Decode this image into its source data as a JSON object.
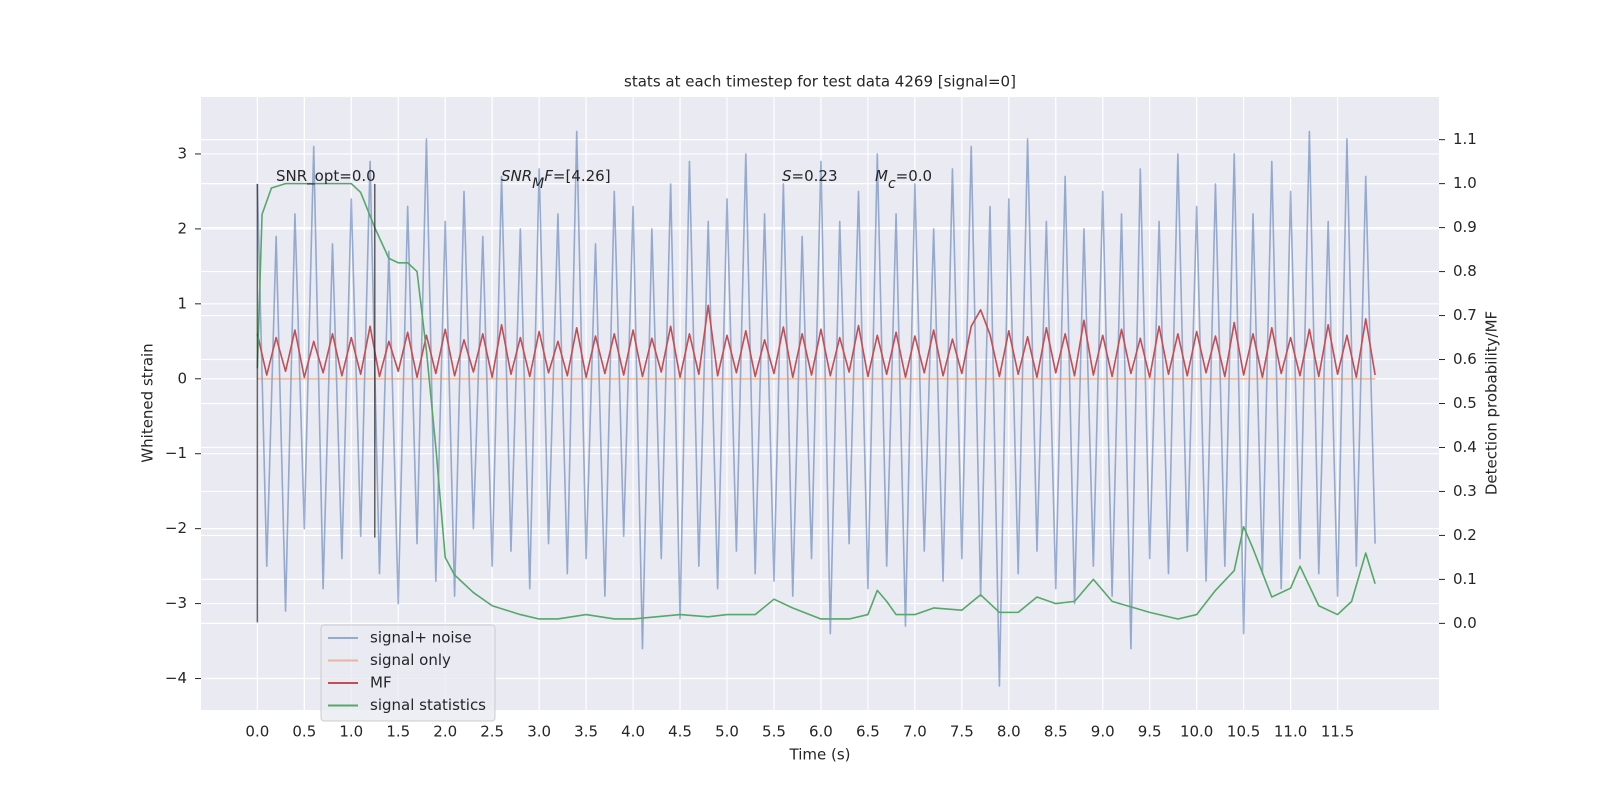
{
  "chart_data": {
    "type": "line",
    "title": "stats at each timestep for test data 4269 [signal=0]",
    "xlabel": "Time (s)",
    "ylabel": "Whitened strain",
    "y2label": "Detection probability/MF",
    "xlim": [
      -0.6,
      12.58
    ],
    "ylim": [
      -4.42,
      3.76
    ],
    "y2lim": [
      -0.197,
      1.197
    ],
    "grid": true,
    "legend": "lower left",
    "xticks": [
      {
        "value": 0,
        "label": "0.0"
      },
      0.5,
      {
        "value": 1,
        "label": "1.0"
      },
      1.5,
      {
        "value": 2,
        "label": "2.0"
      },
      2.5,
      {
        "value": 3,
        "label": "3.0"
      },
      3.5,
      {
        "value": 4,
        "label": "4.0"
      },
      4.5,
      {
        "value": 5,
        "label": "5.0"
      },
      5.5,
      {
        "value": 6,
        "label": "6.0"
      },
      6.5,
      {
        "value": 7,
        "label": "7.0"
      },
      7.5,
      {
        "value": 8,
        "label": "8.0"
      },
      8.5,
      {
        "value": 9,
        "label": "9.0"
      },
      9.5,
      {
        "value": 10,
        "label": "10.0"
      },
      10.5,
      {
        "value": 11,
        "label": "11.0"
      },
      11.5
    ],
    "yticks": [
      {
        "value": -4,
        "label": "−4"
      },
      {
        "value": -3,
        "label": "−3"
      },
      {
        "value": -2,
        "label": "−2"
      },
      {
        "value": -1,
        "label": "−1"
      },
      0,
      1,
      2,
      3
    ],
    "y2ticks": [
      {
        "value": 0,
        "label": "0.0"
      },
      0.1,
      0.2,
      0.3,
      0.4,
      0.5,
      0.6,
      0.7,
      0.8,
      0.9,
      {
        "value": 1,
        "label": "1.0"
      },
      1.1
    ],
    "x": [
      0,
      0.1,
      0.2,
      0.3,
      0.4,
      0.5,
      0.6,
      0.7,
      0.8,
      0.9,
      1,
      1.1,
      1.2,
      1.3,
      1.4,
      1.5,
      1.6,
      1.7,
      1.8,
      1.9,
      2,
      2.1,
      2.2,
      2.3,
      2.4,
      2.5,
      2.6,
      2.7,
      2.8,
      2.9,
      3,
      3.1,
      3.2,
      3.3,
      3.4,
      3.5,
      3.6,
      3.7,
      3.8,
      3.9,
      4,
      4.1,
      4.2,
      4.3,
      4.4,
      4.5,
      4.6,
      4.7,
      4.8,
      4.9,
      5,
      5.1,
      5.2,
      5.3,
      5.4,
      5.5,
      5.6,
      5.7,
      5.8,
      5.9,
      6,
      6.1,
      6.2,
      6.3,
      6.4,
      6.5,
      6.6,
      6.7,
      6.8,
      6.9,
      7,
      7.1,
      7.2,
      7.3,
      7.4,
      7.5,
      7.6,
      7.7,
      7.8,
      7.9,
      8,
      8.1,
      8.2,
      8.3,
      8.4,
      8.5,
      8.6,
      8.7,
      8.8,
      8.9,
      9,
      9.1,
      9.2,
      9.3,
      9.4,
      9.5,
      9.6,
      9.7,
      9.8,
      9.9,
      10,
      10.1,
      10.2,
      10.3,
      10.4,
      10.5,
      10.6,
      10.7,
      10.8,
      10.9,
      11,
      11.1,
      11.2,
      11.3,
      11.4,
      11.5,
      11.6,
      11.7,
      11.8,
      11.9
    ],
    "series": [
      {
        "name": "signal+ noise",
        "color": "#4c72b0",
        "opacity": 0.55,
        "values": [
          2.6,
          -2.5,
          1.9,
          -3.1,
          2.2,
          -2.0,
          3.1,
          -2.8,
          1.8,
          -2.4,
          2.4,
          -2.1,
          2.9,
          -2.6,
          1.7,
          -3.0,
          2.3,
          -2.2,
          3.2,
          -2.7,
          2.1,
          -2.9,
          2.5,
          -2.0,
          1.9,
          -2.5,
          2.7,
          -2.3,
          2.0,
          -2.8,
          2.8,
          -2.2,
          2.2,
          -2.6,
          3.3,
          -2.4,
          1.8,
          -2.9,
          2.5,
          -2.1,
          2.3,
          -3.6,
          2.0,
          -2.4,
          2.6,
          -3.2,
          2.9,
          -2.5,
          2.1,
          -2.8,
          2.4,
          -2.3,
          3.0,
          -2.6,
          2.2,
          -2.7,
          2.6,
          -2.9,
          1.9,
          -2.4,
          2.9,
          -3.4,
          2.1,
          -2.2,
          2.5,
          -2.8,
          3.0,
          -2.5,
          2.2,
          -3.3,
          2.6,
          -2.3,
          2.0,
          -2.7,
          2.8,
          -2.4,
          3.1,
          -2.9,
          2.3,
          -4.1,
          2.4,
          -2.6,
          3.2,
          -2.3,
          2.1,
          -2.8,
          2.7,
          -3.0,
          2.0,
          -2.5,
          2.5,
          -2.9,
          2.2,
          -3.6,
          2.8,
          -2.4,
          2.1,
          -2.6,
          3.0,
          -2.3,
          2.3,
          -2.7,
          2.6,
          -2.5,
          3.0,
          -3.4,
          2.2,
          -2.6,
          2.9,
          -2.8,
          2.5,
          -2.4,
          3.3,
          -2.6,
          2.1,
          -2.9,
          3.2,
          -2.5,
          2.7,
          -2.2
        ]
      },
      {
        "name": "signal only",
        "color": "#dd8452",
        "opacity": 0.5,
        "values": [
          0,
          0,
          0,
          0,
          0,
          0,
          0,
          0,
          0,
          0,
          0,
          0,
          0,
          0,
          0,
          0,
          0,
          0,
          0,
          0,
          0,
          0,
          0,
          0,
          0,
          0,
          0,
          0,
          0,
          0,
          0,
          0,
          0,
          0,
          0,
          0,
          0,
          0,
          0,
          0,
          0,
          0,
          0,
          0,
          0,
          0,
          0,
          0,
          0,
          0,
          0,
          0,
          0,
          0,
          0,
          0,
          0,
          0,
          0,
          0,
          0,
          0,
          0,
          0,
          0,
          0,
          0,
          0,
          0,
          0,
          0,
          0,
          0,
          0,
          0,
          0,
          0,
          0,
          0,
          0,
          0,
          0,
          0,
          0,
          0,
          0,
          0,
          0,
          0,
          0,
          0,
          0,
          0,
          0,
          0,
          0,
          0,
          0,
          0,
          0,
          0,
          0,
          0,
          0,
          0,
          0,
          0,
          0,
          0,
          0,
          0,
          0,
          0,
          0,
          0,
          0,
          0,
          0,
          0,
          0
        ]
      },
      {
        "name": "MF",
        "color": "#c44e52",
        "opacity": 1,
        "values": [
          0.6,
          0.05,
          0.55,
          0.1,
          0.65,
          0.02,
          0.5,
          0.08,
          0.6,
          0.04,
          0.55,
          0.06,
          0.7,
          0.03,
          0.5,
          0.1,
          0.62,
          0.02,
          0.58,
          0.07,
          0.66,
          0.04,
          0.52,
          0.09,
          0.6,
          0.02,
          0.72,
          0.06,
          0.55,
          0.03,
          0.63,
          0.08,
          0.5,
          0.04,
          0.68,
          0.02,
          0.57,
          0.07,
          0.6,
          0.05,
          0.65,
          0.03,
          0.54,
          0.09,
          0.7,
          0.02,
          0.6,
          0.06,
          0.98,
          0.04,
          0.58,
          0.08,
          0.64,
          0.03,
          0.52,
          0.07,
          0.69,
          0.02,
          0.6,
          0.05,
          0.66,
          0.04,
          0.55,
          0.09,
          0.71,
          0.03,
          0.58,
          0.06,
          0.62,
          0.02,
          0.57,
          0.08,
          0.65,
          0.04,
          0.53,
          0.07,
          0.7,
          0.92,
          0.59,
          0.03,
          0.64,
          0.06,
          0.56,
          0.02,
          0.68,
          0.08,
          0.6,
          0.04,
          0.78,
          0.05,
          0.58,
          0.03,
          0.66,
          0.07,
          0.54,
          0.02,
          0.7,
          0.06,
          0.6,
          0.04,
          0.63,
          0.08,
          0.57,
          0.03,
          0.75,
          0.05,
          0.6,
          0.02,
          0.68,
          0.07,
          0.55,
          0.04,
          0.66,
          0.03,
          0.72,
          0.06,
          0.58,
          0.02,
          0.8,
          0.05
        ]
      },
      {
        "name": "signal statistics",
        "color": "#55a868",
        "opacity": 1,
        "axis": "y2",
        "x": [
          0,
          0.05,
          0.15,
          0.3,
          0.5,
          0.8,
          1.0,
          1.1,
          1.25,
          1.4,
          1.5,
          1.6,
          1.7,
          1.8,
          1.9,
          2.0,
          2.1,
          2.3,
          2.5,
          2.8,
          3.0,
          3.2,
          3.5,
          3.8,
          4.0,
          4.5,
          4.8,
          5.0,
          5.3,
          5.5,
          5.7,
          6.0,
          6.3,
          6.5,
          6.6,
          6.7,
          6.8,
          7.0,
          7.2,
          7.5,
          7.7,
          7.9,
          8.1,
          8.3,
          8.5,
          8.7,
          8.9,
          9.1,
          9.5,
          9.8,
          10.0,
          10.2,
          10.4,
          10.5,
          10.6,
          10.8,
          11.0,
          11.1,
          11.3,
          11.5,
          11.65,
          11.8,
          11.9
        ],
        "values": [
          0.58,
          0.93,
          0.99,
          1.0,
          1.0,
          1.0,
          1.0,
          0.98,
          0.9,
          0.83,
          0.82,
          0.82,
          0.8,
          0.62,
          0.4,
          0.15,
          0.11,
          0.07,
          0.04,
          0.02,
          0.01,
          0.01,
          0.02,
          0.01,
          0.01,
          0.02,
          0.015,
          0.02,
          0.02,
          0.055,
          0.035,
          0.01,
          0.01,
          0.02,
          0.075,
          0.05,
          0.02,
          0.02,
          0.035,
          0.03,
          0.065,
          0.025,
          0.025,
          0.06,
          0.045,
          0.05,
          0.1,
          0.05,
          0.025,
          0.01,
          0.02,
          0.075,
          0.12,
          0.22,
          0.17,
          0.06,
          0.08,
          0.13,
          0.04,
          0.02,
          0.05,
          0.16,
          0.09
        ]
      }
    ],
    "vlines": [
      {
        "x": 0,
        "ymin": -3.25,
        "ymax": 2.6
      },
      {
        "x": 1.25,
        "ymin": -2.12,
        "ymax": 2.6
      }
    ],
    "annotations": [
      [
        {
          "text": "SNR_opt=0.0"
        }
      ],
      [
        {
          "text": "SNR",
          "italic": true
        },
        {
          "text": "M",
          "italic": true,
          "sub": true
        },
        {
          "text": "F",
          "italic": true
        },
        {
          "text": "=[4.26]"
        }
      ],
      [
        {
          "text": "S",
          "italic": true
        },
        {
          "text": "=0.23"
        }
      ],
      [
        {
          "text": "M",
          "italic": true
        },
        {
          "text": "c",
          "italic": true,
          "sub": true
        },
        {
          "text": "=0.0"
        }
      ]
    ]
  }
}
